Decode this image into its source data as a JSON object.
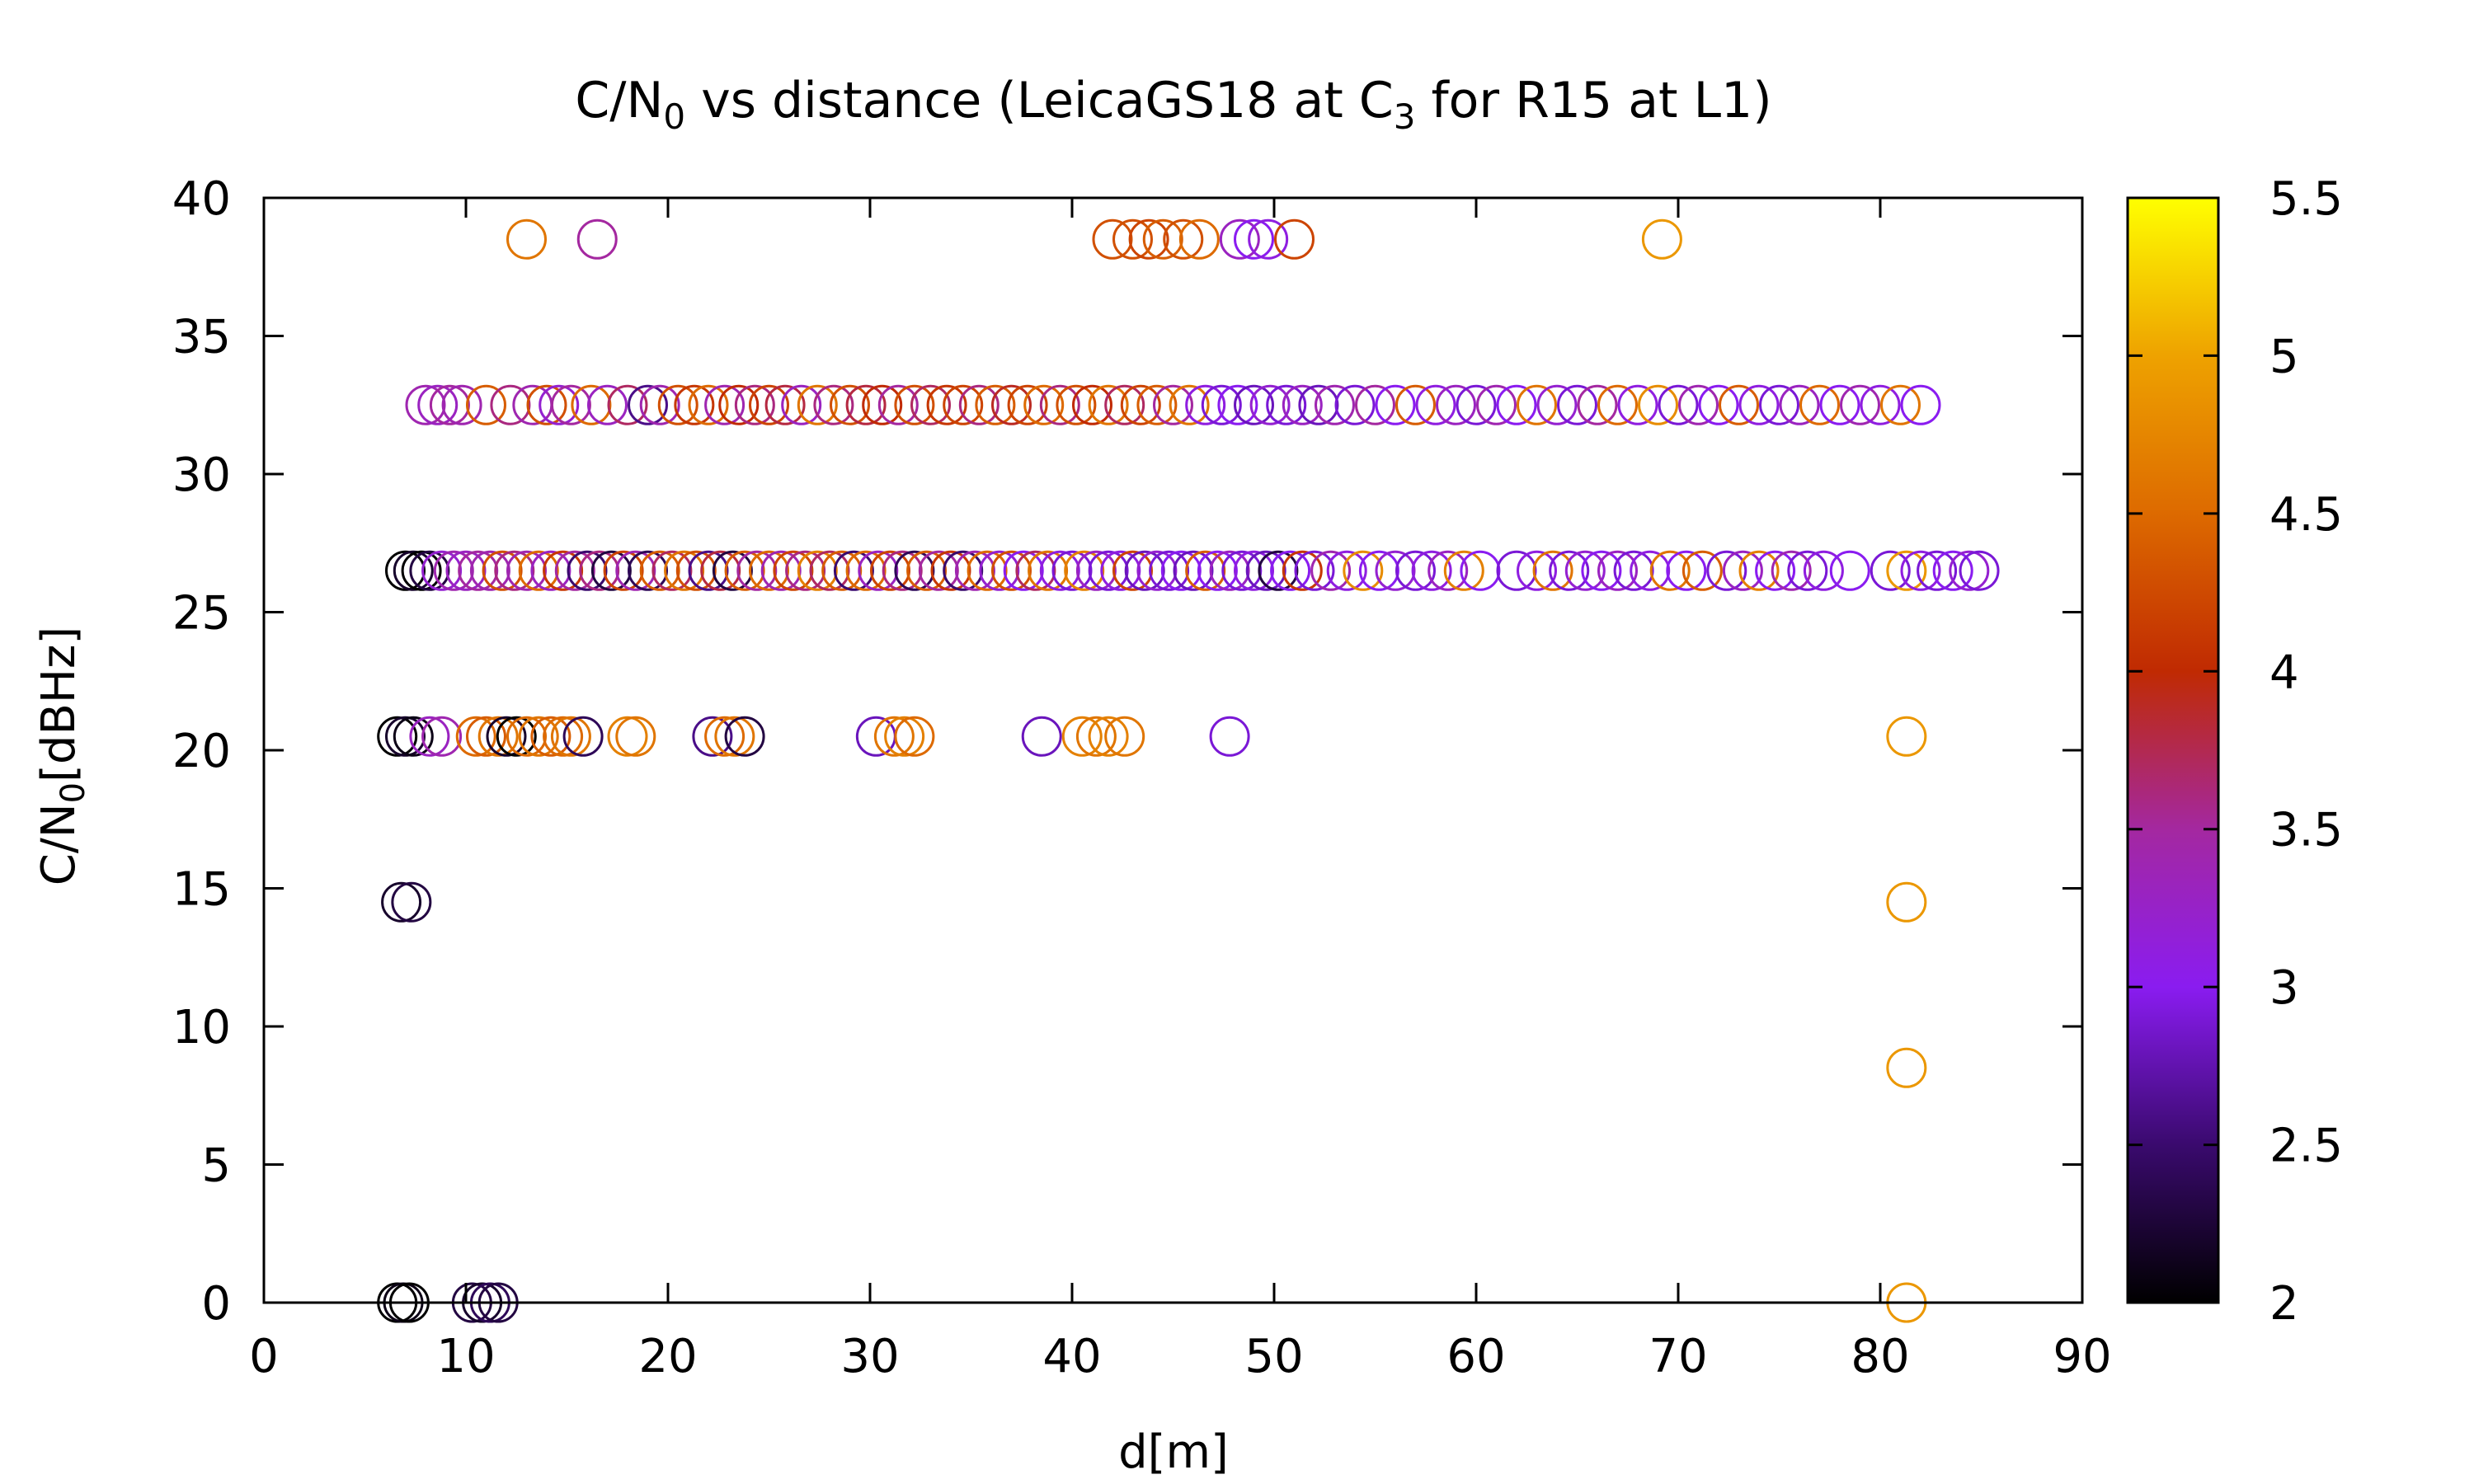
{
  "chart_data": {
    "type": "scatter",
    "title_main": "C/N",
    "title_sub0": "0",
    "title_mid": " vs distance (LeicaGS18 at C",
    "title_sub3": "3",
    "title_end": " for R15 at L1)",
    "xlabel": "d[m]",
    "ylabel_main": "C/N",
    "ylabel_sub": "0",
    "ylabel_end": "[dBHz]",
    "xlim": [
      0,
      90
    ],
    "ylim": [
      0,
      40
    ],
    "x_ticks": [
      "0",
      "10",
      "20",
      "30",
      "40",
      "50",
      "60",
      "70",
      "80",
      "90"
    ],
    "y_ticks": [
      "0",
      "5",
      "10",
      "15",
      "20",
      "25",
      "30",
      "35",
      "40"
    ],
    "colorbar": {
      "range": [
        2,
        5.5
      ],
      "ticks": [
        "2",
        "2.5",
        "3",
        "3.5",
        "4",
        "4.5",
        "5",
        "5.5"
      ],
      "palette": [
        "#000000",
        "#3a0a6e",
        "#8a1cf0",
        "#a428a0",
        "#c02a02",
        "#dd6a00",
        "#eea200",
        "#ffff00"
      ]
    },
    "points": [
      [
        13,
        38.5,
        4.6
      ],
      [
        16.5,
        38.5,
        3.5
      ],
      [
        42,
        38.5,
        4.3
      ],
      [
        43,
        38.5,
        4.3
      ],
      [
        43.8,
        38.5,
        4.2
      ],
      [
        44.5,
        38.5,
        4.4
      ],
      [
        45.5,
        38.5,
        4.3
      ],
      [
        46.3,
        38.5,
        4.5
      ],
      [
        48.3,
        38.5,
        3.3
      ],
      [
        49,
        38.5,
        3.0
      ],
      [
        49.7,
        38.5,
        3.1
      ],
      [
        51,
        38.5,
        4.2
      ],
      [
        69.2,
        38.5,
        4.9
      ],
      [
        8,
        32.5,
        3.4
      ],
      [
        8.6,
        32.5,
        3.3
      ],
      [
        9.2,
        32.5,
        3.5
      ],
      [
        9.8,
        32.5,
        3.4
      ],
      [
        11,
        32.5,
        4.4
      ],
      [
        12.2,
        32.5,
        3.6
      ],
      [
        13.3,
        32.5,
        3.4
      ],
      [
        14,
        32.5,
        4.3
      ],
      [
        14.6,
        32.5,
        3.2
      ],
      [
        15.2,
        32.5,
        3.5
      ],
      [
        16.2,
        32.5,
        4.5
      ],
      [
        17,
        32.5,
        3.3
      ],
      [
        18,
        32.5,
        3.7
      ],
      [
        19,
        32.5,
        2.6
      ],
      [
        19.6,
        32.5,
        3.4
      ],
      [
        20.5,
        32.5,
        4.3
      ],
      [
        21.3,
        32.5,
        4.1
      ],
      [
        22,
        32.5,
        4.5
      ],
      [
        22.8,
        32.5,
        3.4
      ],
      [
        23.5,
        32.5,
        4.0
      ],
      [
        24.3,
        32.5,
        3.6
      ],
      [
        25,
        32.5,
        4.2
      ],
      [
        25.8,
        32.5,
        3.8
      ],
      [
        26.6,
        32.5,
        3.3
      ],
      [
        27.4,
        32.5,
        4.6
      ],
      [
        28.2,
        32.5,
        3.6
      ],
      [
        29,
        32.5,
        4.3
      ],
      [
        29.8,
        32.5,
        3.8
      ],
      [
        30.6,
        32.5,
        4.0
      ],
      [
        31.4,
        32.5,
        3.5
      ],
      [
        32.2,
        32.5,
        4.3
      ],
      [
        33,
        32.5,
        3.7
      ],
      [
        33.8,
        32.5,
        4.1
      ],
      [
        34.6,
        32.5,
        4.2
      ],
      [
        35.4,
        32.5,
        3.6
      ],
      [
        36.2,
        32.5,
        4.4
      ],
      [
        37,
        32.5,
        3.9
      ],
      [
        37.8,
        32.5,
        4.2
      ],
      [
        38.6,
        32.5,
        4.5
      ],
      [
        39.4,
        32.5,
        3.6
      ],
      [
        40.2,
        32.5,
        4.3
      ],
      [
        41,
        32.5,
        4.0
      ],
      [
        41.8,
        32.5,
        4.6
      ],
      [
        42.6,
        32.5,
        3.7
      ],
      [
        43.4,
        32.5,
        4.2
      ],
      [
        44.2,
        32.5,
        4.4
      ],
      [
        45,
        32.5,
        3.5
      ],
      [
        45.8,
        32.5,
        4.6
      ],
      [
        46.6,
        32.5,
        3.1
      ],
      [
        47.4,
        32.5,
        2.9
      ],
      [
        48.2,
        32.5,
        3.0
      ],
      [
        49,
        32.5,
        2.8
      ],
      [
        49.8,
        32.5,
        3.2
      ],
      [
        50.6,
        32.5,
        2.9
      ],
      [
        51.4,
        32.5,
        3.3
      ],
      [
        52.2,
        32.5,
        2.8
      ],
      [
        53,
        32.5,
        3.4
      ],
      [
        54,
        32.5,
        2.9
      ],
      [
        55,
        32.5,
        3.5
      ],
      [
        56,
        32.5,
        3.0
      ],
      [
        57,
        32.5,
        4.4
      ],
      [
        58,
        32.5,
        3.1
      ],
      [
        59,
        32.5,
        3.3
      ],
      [
        60,
        32.5,
        2.9
      ],
      [
        61,
        32.5,
        3.4
      ],
      [
        62,
        32.5,
        3.0
      ],
      [
        63,
        32.5,
        4.6
      ],
      [
        64,
        32.5,
        3.2
      ],
      [
        65,
        32.5,
        2.9
      ],
      [
        66,
        32.5,
        3.5
      ],
      [
        67,
        32.5,
        4.5
      ],
      [
        68,
        32.5,
        3.1
      ],
      [
        69,
        32.5,
        4.8
      ],
      [
        70,
        32.5,
        2.9
      ],
      [
        71,
        32.5,
        3.4
      ],
      [
        72,
        32.5,
        3.0
      ],
      [
        73,
        32.5,
        4.4
      ],
      [
        74,
        32.5,
        3.1
      ],
      [
        75,
        32.5,
        2.9
      ],
      [
        76,
        32.5,
        3.3
      ],
      [
        77,
        32.5,
        4.5
      ],
      [
        78,
        32.5,
        3.0
      ],
      [
        79,
        32.5,
        3.4
      ],
      [
        80,
        32.5,
        3.1
      ],
      [
        81,
        32.5,
        4.6
      ],
      [
        82,
        32.5,
        3.0
      ],
      [
        7,
        26.5,
        2.0
      ],
      [
        7.4,
        26.5,
        2.2
      ],
      [
        7.8,
        26.5,
        2.0
      ],
      [
        8.2,
        26.5,
        2.3
      ],
      [
        8.8,
        26.5,
        3.2
      ],
      [
        9.4,
        26.5,
        3.4
      ],
      [
        10,
        26.5,
        3.3
      ],
      [
        10.6,
        26.5,
        3.5
      ],
      [
        11.2,
        26.5,
        3.4
      ],
      [
        11.8,
        26.5,
        4.3
      ],
      [
        12.4,
        26.5,
        3.6
      ],
      [
        13,
        26.5,
        3.4
      ],
      [
        13.6,
        26.5,
        4.5
      ],
      [
        14.2,
        26.5,
        3.3
      ],
      [
        14.8,
        26.5,
        4.1
      ],
      [
        15.4,
        26.5,
        3.5
      ],
      [
        16,
        26.5,
        2.5
      ],
      [
        16.6,
        26.5,
        3.6
      ],
      [
        17.2,
        26.5,
        2.3
      ],
      [
        17.8,
        26.5,
        4.2
      ],
      [
        18.4,
        26.5,
        3.4
      ],
      [
        19,
        26.5,
        2.4
      ],
      [
        19.6,
        26.5,
        4.4
      ],
      [
        20.2,
        26.5,
        3.7
      ],
      [
        20.8,
        26.5,
        4.6
      ],
      [
        21.4,
        26.5,
        4.3
      ],
      [
        22,
        26.5,
        2.6
      ],
      [
        22.6,
        26.5,
        3.8
      ],
      [
        23.2,
        26.5,
        2.3
      ],
      [
        23.8,
        26.5,
        4.4
      ],
      [
        24.4,
        26.5,
        3.5
      ],
      [
        25,
        26.5,
        4.5
      ],
      [
        25.6,
        26.5,
        3.4
      ],
      [
        26.2,
        26.5,
        4.2
      ],
      [
        26.8,
        26.5,
        3.6
      ],
      [
        27.4,
        26.5,
        4.7
      ],
      [
        28,
        26.5,
        3.7
      ],
      [
        28.6,
        26.5,
        4.4
      ],
      [
        29.2,
        26.5,
        2.5
      ],
      [
        29.8,
        26.5,
        4.5
      ],
      [
        30.4,
        26.5,
        3.3
      ],
      [
        31,
        26.5,
        4.2
      ],
      [
        31.6,
        26.5,
        3.6
      ],
      [
        32.2,
        26.5,
        2.4
      ],
      [
        32.8,
        26.5,
        4.4
      ],
      [
        33.4,
        26.5,
        3.5
      ],
      [
        34,
        26.5,
        4.1
      ],
      [
        34.6,
        26.5,
        2.5
      ],
      [
        35.2,
        26.5,
        3.4
      ],
      [
        35.8,
        26.5,
        4.5
      ],
      [
        36.4,
        26.5,
        3.2
      ],
      [
        37,
        26.5,
        4.3
      ],
      [
        37.6,
        26.5,
        3.0
      ],
      [
        38.2,
        26.5,
        3.7
      ],
      [
        38.8,
        26.5,
        4.6
      ],
      [
        39.4,
        26.5,
        3.1
      ],
      [
        40,
        26.5,
        2.9
      ],
      [
        40.6,
        26.5,
        4.7
      ],
      [
        41.2,
        26.5,
        3.3
      ],
      [
        41.8,
        26.5,
        2.9
      ],
      [
        42.4,
        26.5,
        3.1
      ],
      [
        43,
        26.5,
        4.2
      ],
      [
        43.6,
        26.5,
        2.8
      ],
      [
        44.2,
        26.5,
        3.2
      ],
      [
        44.8,
        26.5,
        2.9
      ],
      [
        45.4,
        26.5,
        3.0
      ],
      [
        46,
        26.5,
        2.8
      ],
      [
        46.6,
        26.5,
        4.4
      ],
      [
        47.2,
        26.5,
        3.0
      ],
      [
        47.8,
        26.5,
        3.3
      ],
      [
        48.4,
        26.5,
        2.9
      ],
      [
        49,
        26.5,
        3.1
      ],
      [
        49.6,
        26.5,
        2.8
      ],
      [
        50.2,
        26.5,
        2.3
      ],
      [
        50.8,
        26.5,
        3.0
      ],
      [
        51.4,
        26.5,
        4.1
      ],
      [
        52,
        26.5,
        2.9
      ],
      [
        52.8,
        26.5,
        3.4
      ],
      [
        53.6,
        26.5,
        3.1
      ],
      [
        54.4,
        26.5,
        4.8
      ],
      [
        55.2,
        26.5,
        3.0
      ],
      [
        56,
        26.5,
        3.2
      ],
      [
        57,
        26.5,
        2.9
      ],
      [
        57.8,
        26.5,
        3.1
      ],
      [
        58.6,
        26.5,
        3.3
      ],
      [
        59.4,
        26.5,
        4.7
      ],
      [
        60.2,
        26.5,
        3.0
      ],
      [
        62,
        26.5,
        2.9
      ],
      [
        63,
        26.5,
        3.1
      ],
      [
        63.8,
        26.5,
        4.6
      ],
      [
        64.6,
        26.5,
        2.9
      ],
      [
        65.4,
        26.5,
        3.2
      ],
      [
        66.2,
        26.5,
        3.0
      ],
      [
        67,
        26.5,
        3.3
      ],
      [
        67.8,
        26.5,
        2.9
      ],
      [
        68.6,
        26.5,
        3.1
      ],
      [
        69.6,
        26.5,
        4.6
      ],
      [
        70.4,
        26.5,
        3.0
      ],
      [
        71.2,
        26.5,
        4.4
      ],
      [
        72.4,
        26.5,
        2.9
      ],
      [
        73.2,
        26.5,
        3.3
      ],
      [
        74,
        26.5,
        4.7
      ],
      [
        74.8,
        26.5,
        3.0
      ],
      [
        75.6,
        26.5,
        3.4
      ],
      [
        76.4,
        26.5,
        2.9
      ],
      [
        77.2,
        26.5,
        3.1
      ],
      [
        78.5,
        26.5,
        3.0
      ],
      [
        80.5,
        26.5,
        2.9
      ],
      [
        81.3,
        26.5,
        4.9
      ],
      [
        82,
        26.5,
        3.1
      ],
      [
        82.8,
        26.5,
        2.9
      ],
      [
        83.6,
        26.5,
        3.0
      ],
      [
        84.4,
        26.5,
        3.2
      ],
      [
        84.9,
        26.5,
        2.9
      ],
      [
        6.6,
        20.5,
        2.0
      ],
      [
        7,
        20.5,
        2.2
      ],
      [
        7.4,
        20.5,
        2.1
      ],
      [
        8.2,
        20.5,
        3.3
      ],
      [
        8.8,
        20.5,
        3.4
      ],
      [
        10.5,
        20.5,
        4.5
      ],
      [
        11,
        20.5,
        4.4
      ],
      [
        11.6,
        20.5,
        4.6
      ],
      [
        12,
        20.5,
        2.2
      ],
      [
        12.5,
        20.5,
        2.0
      ],
      [
        13,
        20.5,
        4.5
      ],
      [
        13.6,
        20.5,
        4.6
      ],
      [
        14.2,
        20.5,
        4.4
      ],
      [
        14.8,
        20.5,
        4.5
      ],
      [
        15.2,
        20.5,
        4.6
      ],
      [
        15.8,
        20.5,
        2.4
      ],
      [
        18,
        20.5,
        4.7
      ],
      [
        18.4,
        20.5,
        4.6
      ],
      [
        22.2,
        20.5,
        2.6
      ],
      [
        22.8,
        20.5,
        4.5
      ],
      [
        23.3,
        20.5,
        4.6
      ],
      [
        23.8,
        20.5,
        2.3
      ],
      [
        30.3,
        20.5,
        2.8
      ],
      [
        31.2,
        20.5,
        4.6
      ],
      [
        31.7,
        20.5,
        4.7
      ],
      [
        32.2,
        20.5,
        4.5
      ],
      [
        38.5,
        20.5,
        2.8
      ],
      [
        40.5,
        20.5,
        4.7
      ],
      [
        41.2,
        20.5,
        4.6
      ],
      [
        41.8,
        20.5,
        4.7
      ],
      [
        42.6,
        20.5,
        4.6
      ],
      [
        47.8,
        20.5,
        2.9
      ],
      [
        81.3,
        20.5,
        4.9
      ],
      [
        6.8,
        14.5,
        2.2
      ],
      [
        7.3,
        14.5,
        2.3
      ],
      [
        81.3,
        14.5,
        4.9
      ],
      [
        81.3,
        8.5,
        4.9
      ],
      [
        6.6,
        0,
        2.0
      ],
      [
        6.9,
        0,
        2.1
      ],
      [
        7.2,
        0,
        2.0
      ],
      [
        10.3,
        0,
        2.3
      ],
      [
        10.8,
        0,
        2.2
      ],
      [
        11.2,
        0,
        2.4
      ],
      [
        11.6,
        0,
        2.3
      ],
      [
        81.3,
        0,
        4.9
      ]
    ]
  }
}
